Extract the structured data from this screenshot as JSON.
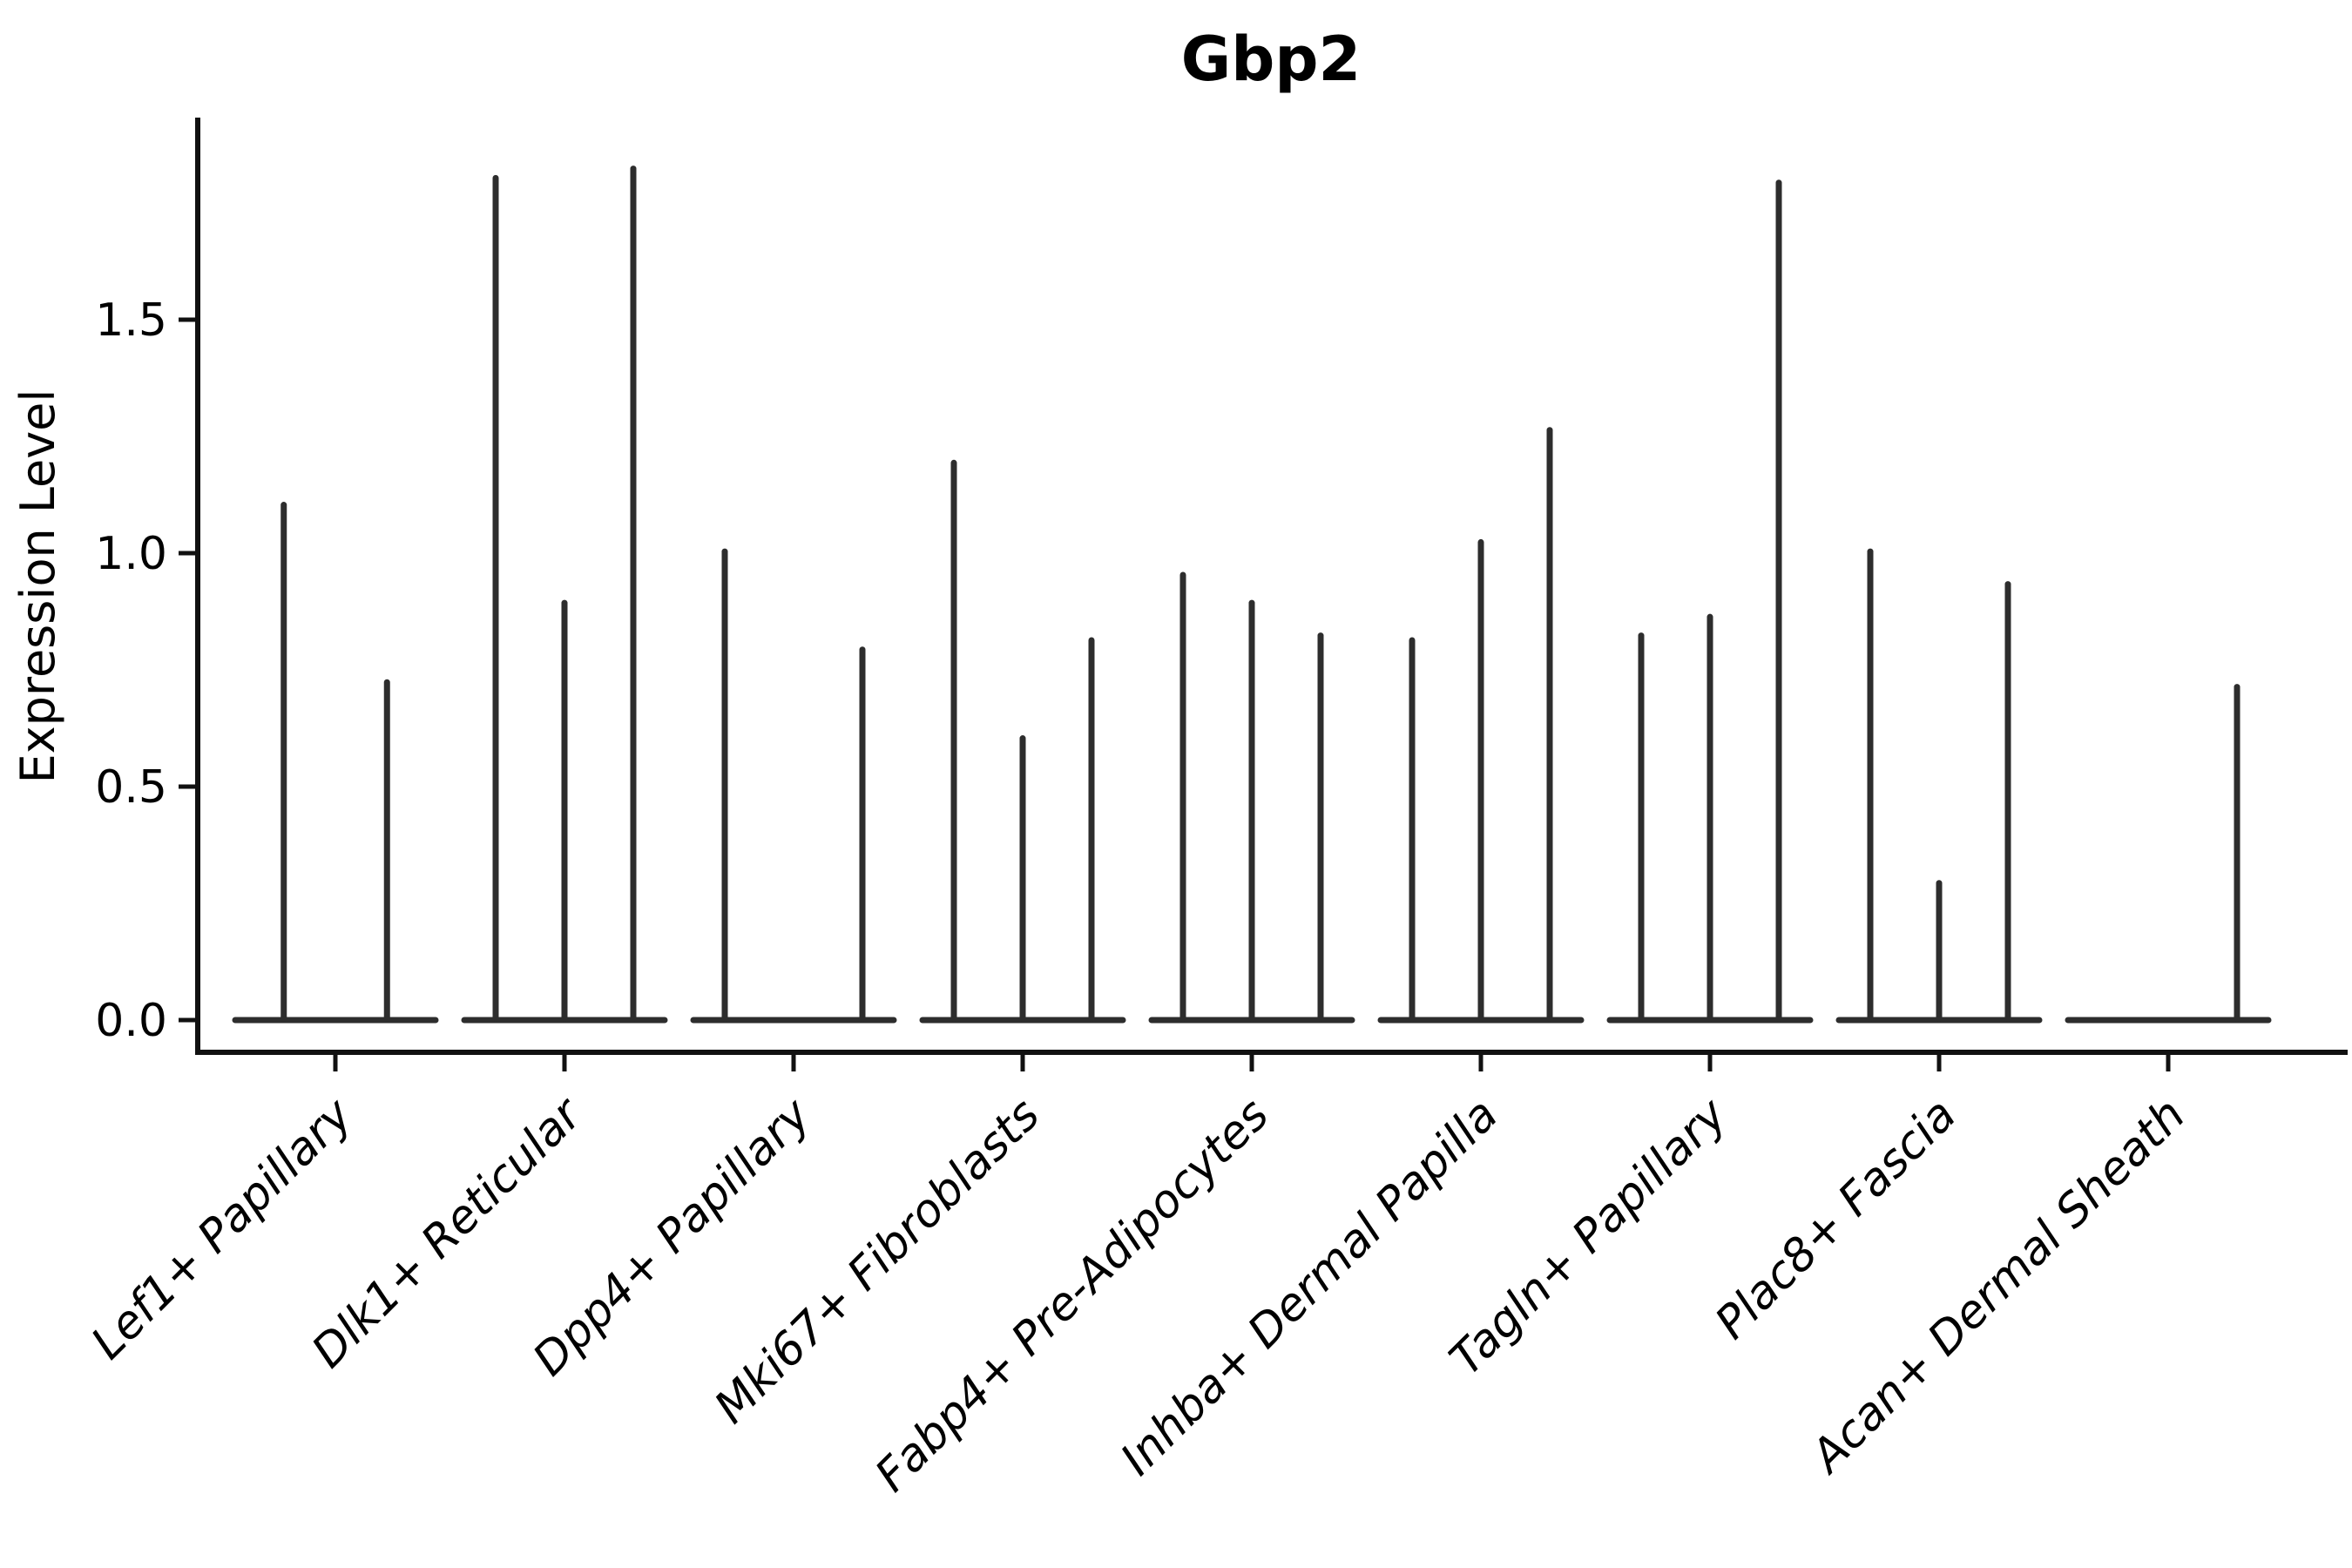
{
  "chart_data": {
    "type": "violin",
    "title": "Gbp2",
    "ylabel": "Expression Level",
    "xlabel": "",
    "ylim": [
      -0.07,
      1.92
    ],
    "grid": false,
    "legend": "none",
    "yticks": [
      "0.0",
      "0.5",
      "1.0",
      "1.5"
    ],
    "ink_color": "#2d2d2d",
    "axis_color": "#111111",
    "categories": [
      {
        "label": "Lef1+ Papillary",
        "violins": [
          1.11,
          0.73
        ]
      },
      {
        "label": "Dlk1+ Reticular",
        "violins": [
          1.81,
          0.9,
          1.83
        ]
      },
      {
        "label": "Dpp4+ Papillary",
        "violins": [
          1.01,
          0.0,
          0.8
        ]
      },
      {
        "label": "Mki67+ Fibroblasts",
        "violins": [
          1.2,
          0.61,
          0.82
        ]
      },
      {
        "label": "Fabp4+ Pre-Adipocytes",
        "violins": [
          0.96,
          0.9,
          0.83
        ]
      },
      {
        "label": "Inhba+ Dermal Papilla",
        "violins": [
          0.82,
          1.03,
          1.27
        ]
      },
      {
        "label": "Tagln+ Papillary",
        "violins": [
          0.83,
          0.87,
          1.8
        ]
      },
      {
        "label": "Plac8+ Fascia",
        "violins": [
          1.01,
          0.3,
          0.94
        ]
      },
      {
        "label": "Acan+ Dermal Sheath",
        "violins": [
          0.0,
          0.0,
          0.72
        ]
      }
    ]
  }
}
